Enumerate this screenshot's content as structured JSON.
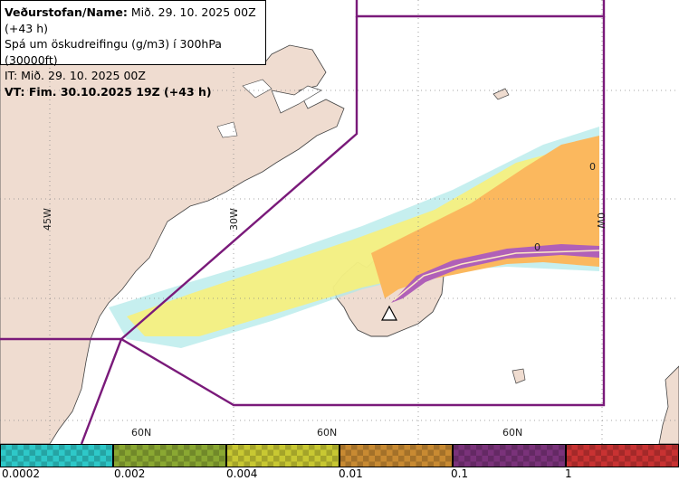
{
  "header": {
    "line1_prefix": "Veðurstofan/Name:",
    "line1_value": " Mið. 29. 10. 2025 00Z (+43 h)",
    "line2": "Spá um öskudreifingu (g/m3) í 300hPa (30000ft)",
    "line3": "IT: Mið. 29. 10. 2025 00Z",
    "line4": "VT: Fim. 30.10.2025 19Z (+43 h)"
  },
  "grid_labels": {
    "lon": [
      "45W",
      "30W",
      "0W"
    ],
    "lat": [
      "60N",
      "60N",
      "60N"
    ]
  },
  "contour_labels": [
    "0",
    "0"
  ],
  "legend": {
    "labels": [
      "0.0002",
      "0.002",
      "0.004",
      "0.01",
      "0.1",
      "1"
    ],
    "colors": [
      "#2ec8c8",
      "#8aa832",
      "#c8c832",
      "#c88a32",
      "#7a327a",
      "#c83232"
    ]
  },
  "colors": {
    "land": "#efdcd0",
    "boundary": "#7a1a7a",
    "ash_yellow": "#f7f07a",
    "ash_orange": "#fbb85e",
    "ash_purple": "#b060b8",
    "ash_cyan": "#aee8e8"
  },
  "icons": [
    "volcano-marker-icon"
  ]
}
